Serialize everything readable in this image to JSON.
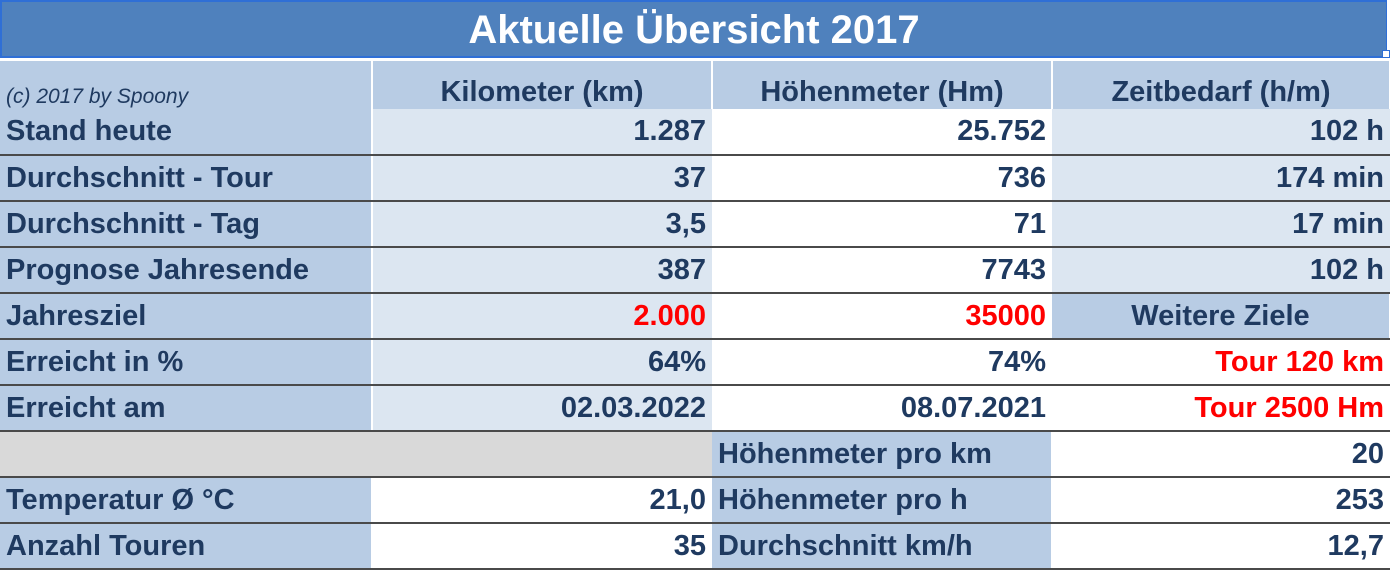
{
  "title": "Aktuelle Übersicht 2017",
  "header": {
    "copyright": "(c) 2017 by Spoony",
    "col_km": "Kilometer (km)",
    "col_hm": "Höhenmeter (Hm)",
    "col_time": "Zeitbedarf (h/m)"
  },
  "rows": [
    {
      "label": "Stand heute",
      "km": "1.287",
      "hm": "25.752",
      "time": "102 h"
    },
    {
      "label": "Durchschnitt - Tour",
      "km": "37",
      "hm": "736",
      "time": "174 min"
    },
    {
      "label": "Durchschnitt - Tag",
      "km": "3,5",
      "hm": "71",
      "time": "17 min"
    },
    {
      "label": "Prognose Jahresende",
      "km": "387",
      "hm": "7743",
      "time": "102 h"
    },
    {
      "label": "Jahresziel",
      "km": "2.000",
      "hm": "35000",
      "time": "Weitere Ziele"
    },
    {
      "label": "Erreicht in %",
      "km": "64%",
      "hm": "74%",
      "time": "Tour 120 km"
    },
    {
      "label": "Erreicht am",
      "km": "02.03.2022",
      "hm": "08.07.2021",
      "time": "Tour 2500 Hm"
    }
  ],
  "extra": [
    {
      "label": "",
      "value": "",
      "label2": "Höhenmeter pro km",
      "value2": "20"
    },
    {
      "label": "Temperatur Ø °C",
      "value": "21,0",
      "label2": "Höhenmeter pro h",
      "value2": "253"
    },
    {
      "label": "Anzahl Touren",
      "value": "35",
      "label2": "Durchschnitt km/h",
      "value2": "12,7"
    }
  ],
  "colors": {
    "header_blue": "#4f81bd",
    "label_blue": "#b8cce4",
    "light_blue": "#dce6f1",
    "text_navy": "#1f3a60",
    "highlight_red": "#ff0000"
  }
}
